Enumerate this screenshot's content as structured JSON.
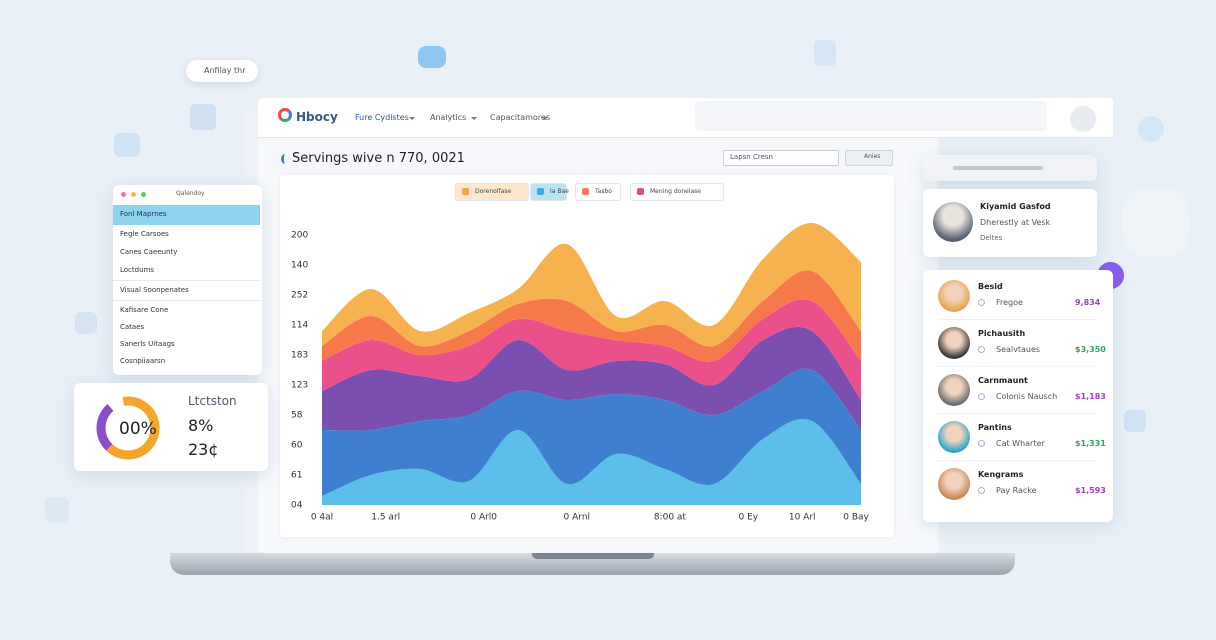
{
  "floating_pill": "Anfilay thr",
  "nav": {
    "logo": "Hbocy",
    "items": [
      "Fure Cydistes",
      "Analytics",
      "Capacitamores"
    ]
  },
  "header": {
    "title": "Servings wive n 770, 0021",
    "search": "Lapsn Cresn",
    "button": "Anies"
  },
  "sidebar": {
    "title": "Qalendoy",
    "active": "Fonl Maprnes",
    "items": [
      "Fegle Carsoes",
      "Canes Caeeunty",
      "Loctdums"
    ],
    "section": "Visual Soonpenates",
    "section_items": [
      "Kafisare Cone",
      "Cataes",
      "Sanerls Uitaags",
      "Cosnpiiaarsn"
    ]
  },
  "stat_card": {
    "value": "00%",
    "label": "Ltctston",
    "stat1": "8%",
    "stat2": "23¢"
  },
  "chart_filters": [
    "Dorenolfase",
    "Ia Bae",
    "Tasbo",
    "Mening donelase"
  ],
  "chart_data": {
    "type": "area",
    "stacked": true,
    "x": [
      0,
      1,
      2,
      3,
      4,
      5,
      6,
      7,
      8,
      9,
      10,
      11
    ],
    "xlim": [
      0,
      11
    ],
    "xticks": [
      {
        "value": 0,
        "label": "0 4al"
      },
      {
        "value": 1.3,
        "label": "1.5 arl"
      },
      {
        "value": 3.3,
        "label": "0 Arl0"
      },
      {
        "value": 5.2,
        "label": "0 Arnl"
      },
      {
        "value": 7.1,
        "label": "8:00 at"
      },
      {
        "value": 8.7,
        "label": "0 Ey"
      },
      {
        "value": 9.8,
        "label": "10 Arl"
      },
      {
        "value": 10.9,
        "label": "0 Bay"
      }
    ],
    "ylim": [
      0,
      9
    ],
    "yticks": [
      {
        "value": 0,
        "label": "04"
      },
      {
        "value": 1,
        "label": "61"
      },
      {
        "value": 2,
        "label": "60"
      },
      {
        "value": 3,
        "label": "58"
      },
      {
        "value": 4,
        "label": "123"
      },
      {
        "value": 5,
        "label": "183"
      },
      {
        "value": 6,
        "label": "114"
      },
      {
        "value": 7,
        "label": "252"
      },
      {
        "value": 8,
        "label": "140"
      },
      {
        "value": 9,
        "label": "200"
      }
    ],
    "series": [
      {
        "color": "#5cbfea",
        "values": [
          0.3,
          1.0,
          1.2,
          0.8,
          2.5,
          0.7,
          1.7,
          1.2,
          0.7,
          2.2,
          2.8,
          0.7
        ]
      },
      {
        "color": "#3f7fd0",
        "values": [
          2.2,
          1.5,
          1.6,
          2.2,
          1.3,
          2.8,
          2.0,
          2.3,
          2.3,
          1.6,
          1.7,
          1.8
        ]
      },
      {
        "color": "#7b4fb0",
        "values": [
          1.3,
          2.0,
          1.5,
          1.2,
          1.7,
          1.0,
          1.1,
          1.2,
          1.0,
          1.7,
          1.3,
          1.0
        ]
      },
      {
        "color": "#ea5089",
        "values": [
          1.0,
          1.0,
          0.7,
          1.1,
          0.7,
          1.3,
          0.7,
          0.6,
          0.8,
          0.7,
          1.0,
          1.3
        ]
      },
      {
        "color": "#f5794a",
        "values": [
          0.5,
          0.8,
          0.3,
          0.5,
          0.5,
          1.0,
          0.3,
          0.7,
          0.5,
          0.6,
          1.0,
          1.0
        ]
      },
      {
        "color": "#f6b24e",
        "values": [
          0.5,
          0.9,
          0.5,
          0.6,
          0.5,
          1.9,
          0.5,
          0.8,
          0.7,
          1.4,
          1.6,
          2.3
        ]
      }
    ]
  },
  "profile": {
    "name": "Kiyamid Gasfod",
    "subtitle": "Dherestly at Vesk",
    "detail": "Deltes"
  },
  "people": [
    {
      "name": "Besid",
      "detail": "Fregoe",
      "amount": "9,834",
      "color": "#9b3fc4"
    },
    {
      "name": "Pichausith",
      "detail": "Sealvtaues",
      "amount": "$3,350",
      "color": "#2fa65a"
    },
    {
      "name": "Carnmaunt",
      "detail": "Colonis Nausch",
      "amount": "$1,183",
      "color": "#9b3fc4"
    },
    {
      "name": "Pantins",
      "detail": "Cat Wharter",
      "amount": "$1,331",
      "color": "#2fa65a"
    },
    {
      "name": "Kengrams",
      "detail": "Pay Racke",
      "amount": "$1,593",
      "color": "#9b3fc4"
    }
  ]
}
